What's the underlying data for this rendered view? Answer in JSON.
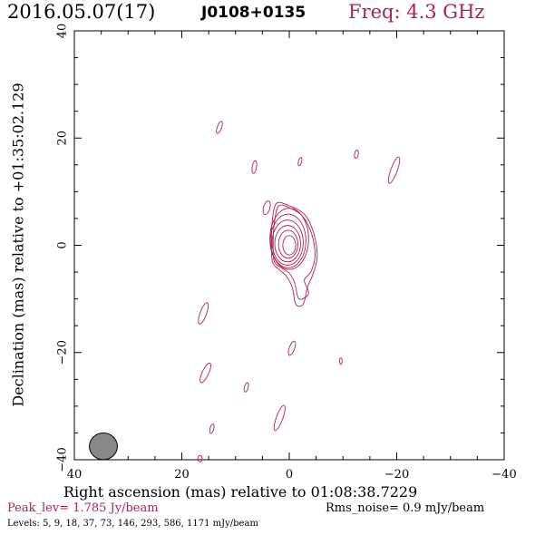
{
  "header": {
    "date": "2016.05.07(17)",
    "source": "J0108+0135",
    "freq": "Freq: 4.3 GHz"
  },
  "chart_data": {
    "type": "contour",
    "xlabel": "Right ascension (mas) relative to 01:08:38.7229",
    "ylabel": "Declination (mas) relative to +01:35:02.129",
    "xlim": [
      40,
      -40
    ],
    "ylim": [
      -40,
      40
    ],
    "xticks": [
      40,
      20,
      0,
      -20,
      -40
    ],
    "yticks": [
      -40,
      -20,
      0,
      20,
      40
    ],
    "contour_color": "#b0214a",
    "core_contours": [
      {
        "cx": 0,
        "cy": 0,
        "rx": 1.2,
        "ry": 1.8
      },
      {
        "cx": 0.2,
        "cy": 0.2,
        "rx": 1.8,
        "ry": 2.6
      },
      {
        "cx": 0.3,
        "cy": 0.3,
        "rx": 2.4,
        "ry": 3.4
      },
      {
        "cx": 0.3,
        "cy": 0.5,
        "rx": 2.9,
        "ry": 4.2
      },
      {
        "cx": 0.2,
        "cy": 0.8,
        "rx": 3.3,
        "ry": 5.0
      },
      {
        "cx": 0.0,
        "cy": 1.2,
        "rx": 3.6,
        "ry": 5.7
      }
    ],
    "extended_contours": [
      [
        [
          2.0,
          7.3
        ],
        [
          0,
          7.0
        ],
        [
          -2.5,
          5.4
        ],
        [
          -4.2,
          2.0
        ],
        [
          -4.8,
          -2.0
        ],
        [
          -4.0,
          -5.0
        ],
        [
          -2.8,
          -6.5
        ],
        [
          -3.6,
          -9.0
        ],
        [
          -1.8,
          -10.0
        ],
        [
          -1.0,
          -7.0
        ],
        [
          0,
          -5.2
        ],
        [
          1.5,
          -4.2
        ],
        [
          2.8,
          -3.0
        ],
        [
          3.0,
          0
        ],
        [
          2.8,
          4.0
        ]
      ],
      [
        [
          2.4,
          7.8
        ],
        [
          0.1,
          7.4
        ],
        [
          -2.9,
          5.7
        ],
        [
          -4.6,
          2.1
        ],
        [
          -5.2,
          -2.2
        ],
        [
          -4.4,
          -5.4
        ],
        [
          -3.4,
          -7.8
        ],
        [
          -2.6,
          -11.0
        ],
        [
          -1.2,
          -11.0
        ],
        [
          -0.6,
          -8.0
        ],
        [
          0.5,
          -5.8
        ],
        [
          1.8,
          -4.6
        ],
        [
          3.1,
          -3.2
        ],
        [
          3.3,
          0
        ],
        [
          3.2,
          4.2
        ]
      ]
    ],
    "isolated_contours": [
      {
        "cx": 13,
        "cy": 22,
        "rx": 0.4,
        "ry": 1.2,
        "angle": 20
      },
      {
        "cx": 6.5,
        "cy": 14.6,
        "rx": 0.4,
        "ry": 1.2,
        "angle": 10
      },
      {
        "cx": -2,
        "cy": 15.6,
        "rx": 0.3,
        "ry": 0.8,
        "angle": 15
      },
      {
        "cx": -12.5,
        "cy": 17,
        "rx": 0.35,
        "ry": 0.8,
        "angle": 10
      },
      {
        "cx": -19.5,
        "cy": 14,
        "rx": 0.6,
        "ry": 2.6,
        "angle": 20
      },
      {
        "cx": 4.2,
        "cy": 7,
        "rx": 0.6,
        "ry": 1.3,
        "angle": 15
      },
      {
        "cx": 16,
        "cy": -12.7,
        "rx": 0.6,
        "ry": 2.1,
        "angle": 20
      },
      {
        "cx": -0.5,
        "cy": -19.2,
        "rx": 0.5,
        "ry": 1.4,
        "angle": 20
      },
      {
        "cx": 15.6,
        "cy": -23.8,
        "rx": 0.6,
        "ry": 2.0,
        "angle": 25
      },
      {
        "cx": 8,
        "cy": -26.5,
        "rx": 0.35,
        "ry": 0.9,
        "angle": 15
      },
      {
        "cx": 1.8,
        "cy": -32.2,
        "rx": 0.6,
        "ry": 2.5,
        "angle": 20
      },
      {
        "cx": 14.4,
        "cy": -34.2,
        "rx": 0.35,
        "ry": 0.9,
        "angle": 15
      },
      {
        "cx": -9.6,
        "cy": -21.6,
        "rx": 0.25,
        "ry": 0.6,
        "angle": 0
      },
      {
        "cx": 16.6,
        "cy": -39.8,
        "rx": 0.4,
        "ry": 0.6,
        "angle": 0
      }
    ],
    "beam": {
      "cx": 34.6,
      "cy": -37.5,
      "rx": 1.0,
      "ry": 2.1,
      "fill": "#888888"
    },
    "peak_lev": "Peak_lev= 1.785 Jy/beam",
    "rms_noise": "Rms_noise= 0.9 mJy/beam",
    "levels": "Levels: 5, 9, 18, 37, 73, 146, 293, 586, 1171 mJy/beam"
  }
}
